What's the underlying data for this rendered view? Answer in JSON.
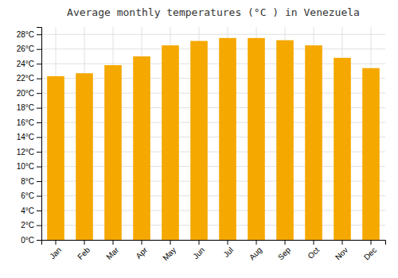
{
  "chart_data": {
    "type": "bar",
    "title": "Average monthly temperatures (°C ) in Venezuela",
    "categories": [
      "Jan",
      "Feb",
      "Mar",
      "Apr",
      "May",
      "Jun",
      "Jul",
      "Aug",
      "Sep",
      "Oct",
      "Nov",
      "Dec"
    ],
    "values": [
      22.3,
      22.7,
      23.8,
      25.0,
      26.5,
      27.1,
      27.5,
      27.5,
      27.2,
      26.5,
      24.8,
      23.4
    ],
    "color": "#F5A800",
    "ylim": [
      0,
      29
    ],
    "yticks": [
      {
        "value": 0,
        "label": "0°C"
      },
      {
        "value": 2,
        "label": "2°C"
      },
      {
        "value": 4,
        "label": "4°C"
      },
      {
        "value": 6,
        "label": "6°C"
      },
      {
        "value": 8,
        "label": "8°C"
      },
      {
        "value": 10,
        "label": "10°C"
      },
      {
        "value": 12,
        "label": "12°C"
      },
      {
        "value": 14,
        "label": "14°C"
      },
      {
        "value": 16,
        "label": "16°C"
      },
      {
        "value": 18,
        "label": "18°C"
      },
      {
        "value": 20,
        "label": "20°C"
      },
      {
        "value": 22,
        "label": "22°C"
      },
      {
        "value": 24,
        "label": "24°C"
      },
      {
        "value": 26,
        "label": "26°C"
      },
      {
        "value": 28,
        "label": "28°C"
      }
    ],
    "grid": true
  }
}
